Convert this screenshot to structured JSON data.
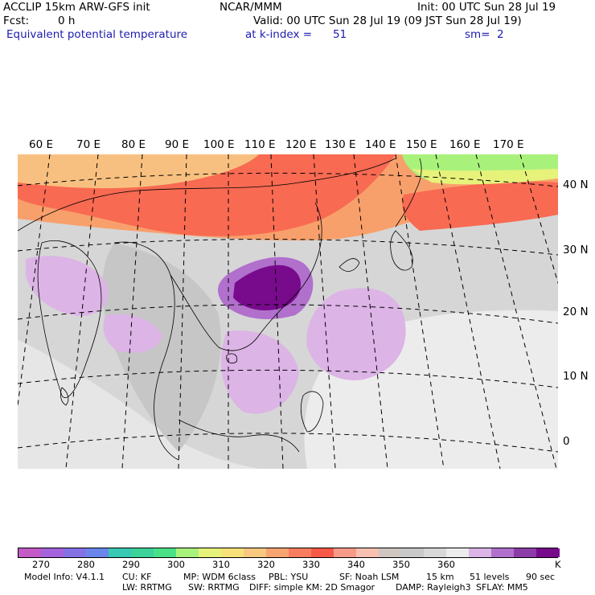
{
  "header": {
    "model_title": "ACCLIP 15km ARW-GFS init",
    "org": "NCAR/MMM",
    "init": "Init: 00 UTC Sun 28 Jul 19",
    "fcst_label": "Fcst:",
    "fcst_value": "0 h",
    "valid": "Valid: 00 UTC Sun 28 Jul 19 (09 JST Sun 28 Jul 19)",
    "field": "Equivalent potential temperature",
    "level_label": "at k-index =",
    "level_value": "51",
    "smoothing_label": "sm=",
    "smoothing_value": "2"
  },
  "map": {
    "longitude_labels": [
      "60 E",
      "70 E",
      "80 E",
      "90 E",
      "100 E",
      "110 E",
      "120 E",
      "130 E",
      "140 E",
      "150 E",
      "160 E",
      "170 E"
    ],
    "latitude_labels": [
      "40 N",
      "30 N",
      "20 N",
      "10 N",
      "0"
    ]
  },
  "colorbar": {
    "colors": [
      "#c45ac8",
      "#a462dc",
      "#8472e4",
      "#6a86ea",
      "#38c8b4",
      "#3cd29a",
      "#4ae088",
      "#a8f27c",
      "#e6f27a",
      "#f8e07a",
      "#f8c880",
      "#f8a470",
      "#f87c60",
      "#f85848",
      "#f89a88",
      "#f8c0b0",
      "#d0c6c0",
      "#c8c8c8",
      "#d8d8d8",
      "#ececec",
      "#dcb4e6",
      "#b070cc",
      "#8c3ca8",
      "#780a8c"
    ],
    "labels": [
      "270",
      "280",
      "290",
      "300",
      "310",
      "320",
      "330",
      "340",
      "350",
      "360"
    ],
    "unit": "K"
  },
  "footer": {
    "model_info": "Model Info: V4.1.1",
    "cu": "CU: KF",
    "mp": "MP: WDM 6class",
    "pbl": "PBL: YSU",
    "sf": "SF: Noah LSM",
    "res": "15 km",
    "levels": "51 levels",
    "dt": "90 sec",
    "lw": "LW: RRTMG",
    "sw": "SW: RRTMG",
    "diff": "DIFF: simple KM: 2D Smagor",
    "damp": "DAMP: Rayleigh3",
    "sflay": "SFLAY: MM5"
  }
}
